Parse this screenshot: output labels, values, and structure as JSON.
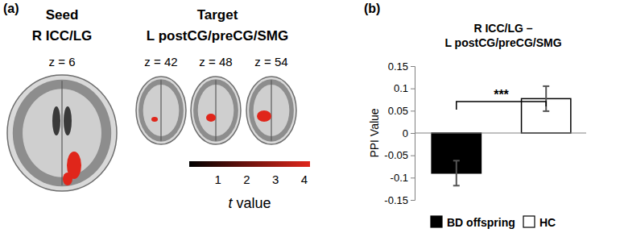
{
  "panel_a": {
    "label": "(a)",
    "seed": {
      "heading": "Seed",
      "region": "R ICC/LG",
      "slices": [
        "z = 6"
      ]
    },
    "target": {
      "heading": "Target",
      "region": "L postCG/preCG/SMG",
      "slices": [
        "z = 42",
        "z = 48",
        "z = 54"
      ]
    },
    "color_bar": {
      "label": "t value",
      "range": [
        0,
        4.2
      ],
      "ticks": [
        1,
        2,
        3,
        4
      ],
      "colors": [
        "#000000",
        "#e0261b"
      ]
    }
  },
  "chart_data": {
    "type": "bar",
    "panel_label": "(b)",
    "title": [
      "R ICC/LG –",
      "L postCG/preCG/SMG"
    ],
    "y_label": "PPI Value",
    "categories": [
      null
    ],
    "series": [
      {
        "name": "BD offspring",
        "color": "#000000",
        "values": [
          -0.09
        ],
        "errors": [
          0.028
        ]
      },
      {
        "name": "HC",
        "color": "#ffffff",
        "values": [
          0.077
        ],
        "errors": [
          0.028
        ]
      }
    ],
    "ylim": [
      -0.15,
      0.15
    ],
    "yticks": [
      -0.15,
      -0.1,
      -0.05,
      0,
      0.05,
      0.1,
      0.15
    ],
    "legend": "bottom",
    "annotations": [
      "***"
    ]
  }
}
